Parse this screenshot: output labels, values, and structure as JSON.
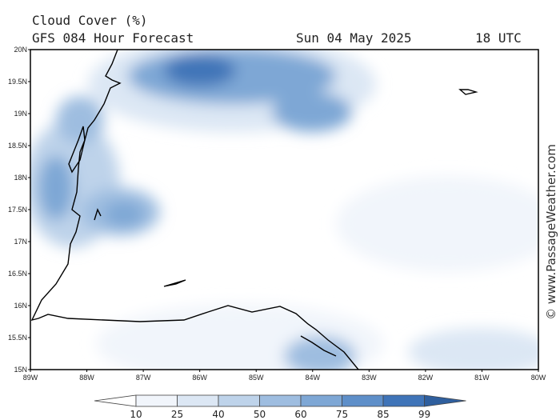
{
  "header": {
    "title": "Cloud Cover (%)",
    "subtitle": "GFS 084 Hour Forecast",
    "date": "Sun 04 May 2025",
    "time": "18 UTC"
  },
  "map": {
    "lat_labels": [
      "20N",
      "19.5N",
      "19N",
      "18.5N",
      "18N",
      "17.5N",
      "17N",
      "16.5N",
      "16N",
      "15.5N",
      "15N"
    ],
    "lon_labels": [
      "89W",
      "88W",
      "87W",
      "86W",
      "85W",
      "84W",
      "83W",
      "82W",
      "81W",
      "80W"
    ]
  },
  "colorbar": {
    "labels": [
      10,
      25,
      40,
      50,
      60,
      75,
      85,
      99
    ],
    "colors": [
      "#ffffff",
      "#f1f5fb",
      "#dce7f4",
      "#bed3ea",
      "#9ebde0",
      "#7ea7d5",
      "#5e8fc9",
      "#3f74b8",
      "#2f5f9e"
    ]
  },
  "watermark": "© www.PassageWeather.com"
}
